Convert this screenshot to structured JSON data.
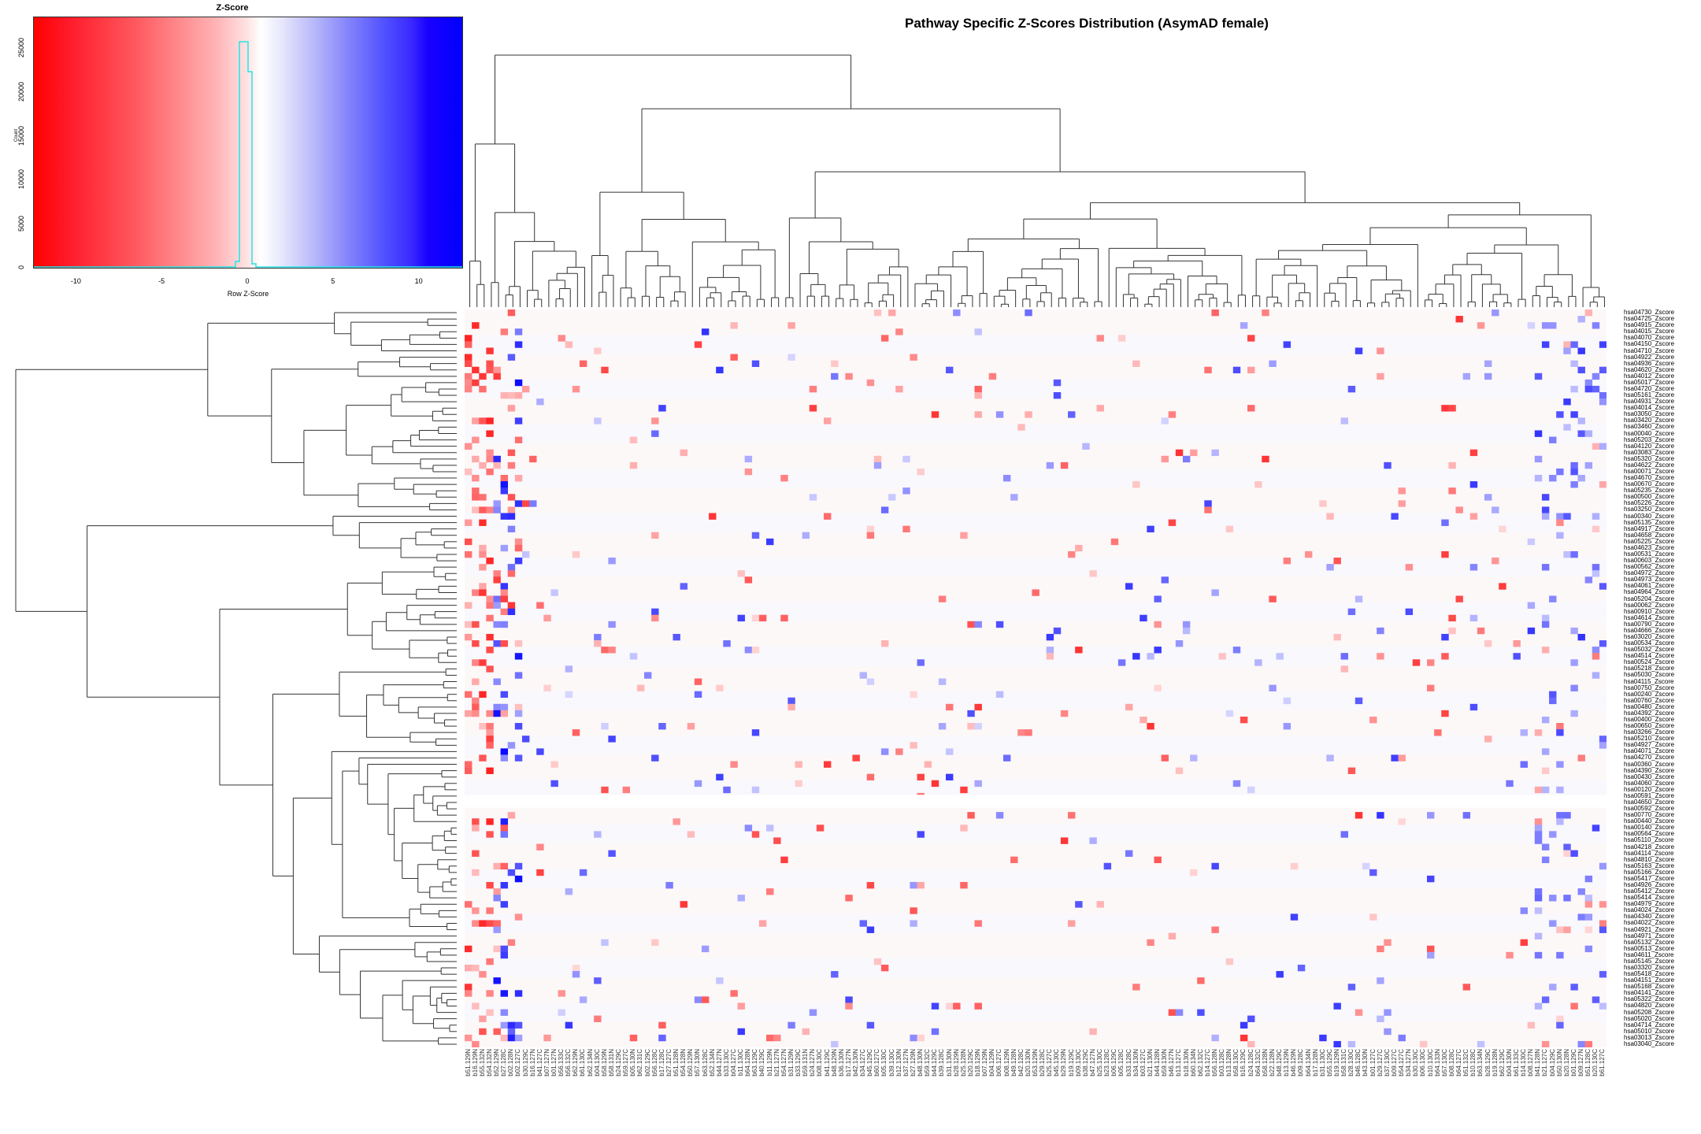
{
  "title": "Pathway Specific Z-Scores Distribution (AsymAD female)",
  "color_key": {
    "title": "Z-Score",
    "xlabel": "Row Z-Score",
    "ylabel": "Count",
    "x_ticks": [
      "-10",
      "-5",
      "0",
      "5",
      "10"
    ],
    "y_ticks": [
      "0",
      "5000",
      "10000",
      "15000",
      "20000",
      "25000"
    ],
    "low_color": "#ff0000",
    "mid_color": "#ffffff",
    "high_color": "#0000ff",
    "hist_color": "#00ffff"
  },
  "chart_data": [
    {
      "type": "bar",
      "title": "Z-Score",
      "xlabel": "Row Z-Score",
      "ylabel": "Count",
      "xlim": [
        -12.5,
        12.5
      ],
      "ylim": [
        0,
        28500
      ],
      "categories": [
        "-0.75",
        "-0.25",
        "0.25",
        "0.75"
      ],
      "values": [
        600,
        27300,
        23900,
        400
      ],
      "grid": false,
      "note": "Histogram of row z-scores overlaid on color key gradient (red -> white -> blue)"
    },
    {
      "type": "heatmap",
      "title": "Pathway Specific Z-Scores Distribution (AsymAD female)",
      "xlabel": "",
      "ylabel": "",
      "color_scale": {
        "min": -12.5,
        "max": 12.5,
        "low": "#ff0000",
        "mid": "#ffffff",
        "high": "#0000ff"
      },
      "row_dendrogram": true,
      "column_dendrogram": true,
      "rows": [
        "hsa04730_Zscore",
        "hsa04725_Zscore",
        "hsa04915_Zscore",
        "hsa04015_Zscore",
        "hsa04070_Zscore",
        "hsa04150_Zscore",
        "hsa04710_Zscore",
        "hsa04922_Zscore",
        "hsa04936_Zscore",
        "hsa04620_Zscore",
        "hsa04012_Zscore",
        "hsa05017_Zscore",
        "hsa04720_Zscore",
        "hsa05161_Zscore",
        "hsa04931_Zscore",
        "hsa04014_Zscore",
        "hsa03050_Zscore",
        "hsa03420_Zscore",
        "hsa03460_Zscore",
        "hsa00040_Zscore",
        "hsa05203_Zscore",
        "hsa04120_Zscore",
        "hsa03083_Zscore",
        "hsa05320_Zscore",
        "hsa04622_Zscore",
        "hsa00071_Zscore",
        "hsa04670_Zscore",
        "hsa00670_Zscore",
        "hsa05235_Zscore",
        "hsa00500_Zscore",
        "hsa05226_Zscore",
        "hsa03250_Zscore",
        "hsa00340_Zscore",
        "hsa05135_Zscore",
        "hsa04917_Zscore",
        "hsa04658_Zscore",
        "hsa05225_Zscore",
        "hsa04623_Zscore",
        "hsa00531_Zscore",
        "hsa00603_Zscore",
        "hsa00562_Zscore",
        "hsa04972_Zscore",
        "hsa04973_Zscore",
        "hsa04061_Zscore",
        "hsa04964_Zscore",
        "hsa05204_Zscore",
        "hsa00062_Zscore",
        "hsa00910_Zscore",
        "hsa04614_Zscore",
        "hsa00790_Zscore",
        "hsa04666_Zscore",
        "hsa03020_Zscore",
        "hsa00534_Zscore",
        "hsa05032_Zscore",
        "hsa04514_Zscore",
        "hsa00524_Zscore",
        "hsa05218_Zscore",
        "hsa05030_Zscore",
        "hsa04115_Zscore",
        "hsa00750_Zscore",
        "hsa00240_Zscore",
        "hsa00760_Zscore",
        "hsa00480_Zscore",
        "hsa04392_Zscore",
        "hsa00400_Zscore",
        "hsa00650_Zscore",
        "hsa03266_Zscore",
        "hsa05210_Zscore",
        "hsa04927_Zscore",
        "hsa04071_Zscore",
        "hsa04270_Zscore",
        "hsa00360_Zscore",
        "hsa04390_Zscore",
        "hsa00430_Zscore",
        "hsa04060_Zscore",
        "hsa00120_Zscore",
        "hsa00591_Zscore",
        "hsa04650_Zscore",
        "hsa00592_Zscore",
        "hsa00770_Zscore",
        "hsa00440_Zscore",
        "hsa00140_Zscore",
        "hsa00564_Zscore",
        "hsa05110_Zscore",
        "hsa04218_Zscore",
        "hsa04114_Zscore",
        "hsa04810_Zscore",
        "hsa05163_Zscore",
        "hsa05166_Zscore",
        "hsa05417_Zscore",
        "hsa04926_Zscore",
        "hsa05412_Zscore",
        "hsa05414_Zscore",
        "hsa04979_Zscore",
        "hsa04024_Zscore",
        "hsa04340_Zscore",
        "hsa04022_Zscore",
        "hsa04921_Zscore",
        "hsa04971_Zscore",
        "hsa05132_Zscore",
        "hsa00513_Zscore",
        "hsa04611_Zscore",
        "hsa05145_Zscore",
        "hsa03320_Zscore",
        "hsa05418_Zscore",
        "hsa04151_Zscore",
        "hsa05168_Zscore",
        "hsa04141_Zscore",
        "hsa05322_Zscore",
        "hsa04820_Zscore",
        "hsa05208_Zscore",
        "hsa05020_Zscore",
        "hsa04714_Zscore",
        "hsa05010_Zscore",
        "hsa03013_Zscore",
        "hsa03040_Zscore"
      ],
      "columns": [
        "b51.129N",
        "b16.129N",
        "b55.132N",
        "b54.132N",
        "b52.129N",
        "b27.128C",
        "b02.128N",
        "b02.127C",
        "b30.129C",
        "b16.127N",
        "b41.127C",
        "b07.127N",
        "b01.127N",
        "b56.133C",
        "b56.132C",
        "b62.129N",
        "b61.130C",
        "b62.134N",
        "b04.130C",
        "b58.129N",
        "b58.131N",
        "b24.129C",
        "b59.127C",
        "b05.130N",
        "b62.131C",
        "b02.129C",
        "b56.128C",
        "b17.128C",
        "b27.127C",
        "b51.128N",
        "b54.128N",
        "b50.129N",
        "b57.130N",
        "b63.128C",
        "b52.134N",
        "b44.127N",
        "b33.130C",
        "b04.127C",
        "b11.130C",
        "b64.128N",
        "b63.129C",
        "b40.129C",
        "b11.129N",
        "b21.127N",
        "b54.127N",
        "b31.129N",
        "b33.129C",
        "b59.131N",
        "b24.127N",
        "b08.130C",
        "b41.129C",
        "b48.129N",
        "b36.130N",
        "b17.127N",
        "b42.130N",
        "b34.127C",
        "b45.129C",
        "b60.127C",
        "b05.130C",
        "b39.130C",
        "b12.130N",
        "b37.127N",
        "b27.129N",
        "b48.130N",
        "b59.132C",
        "b44.129C",
        "b39.128C",
        "b31.130N",
        "b28.129N",
        "b25.128N",
        "b20.129C",
        "b18.129N",
        "b07.129N",
        "b04.129N",
        "b06.127C",
        "b08.129N",
        "b49.128N",
        "b42.128C",
        "b20.130N",
        "b53.129N",
        "b29.128C",
        "b25.127C",
        "b45.130C",
        "b29.129N",
        "b19.129C",
        "b09.130C",
        "b38.129C",
        "b47.127N",
        "b25.130C",
        "b23.128C",
        "b06.129C",
        "b05.128C",
        "b33.128C",
        "b34.130N",
        "b03.127C",
        "b21.130N",
        "b44.128N",
        "b59.130N",
        "b46.127N",
        "b13.127C",
        "b18.130N",
        "b60.134N",
        "b62.132C",
        "b14.127C",
        "b56.128N",
        "b03.128C",
        "b13.128N",
        "b58.130C",
        "b16.129C",
        "b24.128C",
        "b64.132C",
        "b58.128N",
        "b22.128N",
        "b48.129C",
        "b13.129N",
        "b46.129N",
        "b09.128C",
        "b64.134N",
        "b17.128N",
        "b31.130C",
        "b55.129C",
        "b19.129N",
        "b58.131C",
        "b28.130C",
        "b46.128C",
        "b43.130N",
        "b01.127C",
        "b29.127C",
        "b37.130C",
        "b09.127C",
        "b54.127C",
        "b34.127N",
        "b30.130C",
        "b06.130C",
        "b10.130C",
        "b64.133N",
        "b57.130C",
        "b08.128C",
        "b64.127C",
        "b51.132C",
        "b10.128C",
        "b63.134N",
        "b28.129C",
        "b19.128N",
        "b62.129C",
        "b04.130N",
        "b61.133C",
        "b14.130C",
        "b08.127N",
        "b41.128N",
        "b21.127C",
        "b04.129C",
        "b50.130N",
        "b20.128N",
        "b01.129C",
        "b09.127N",
        "b51.128C",
        "b20.130C",
        "b61.127C"
      ]
    }
  ]
}
